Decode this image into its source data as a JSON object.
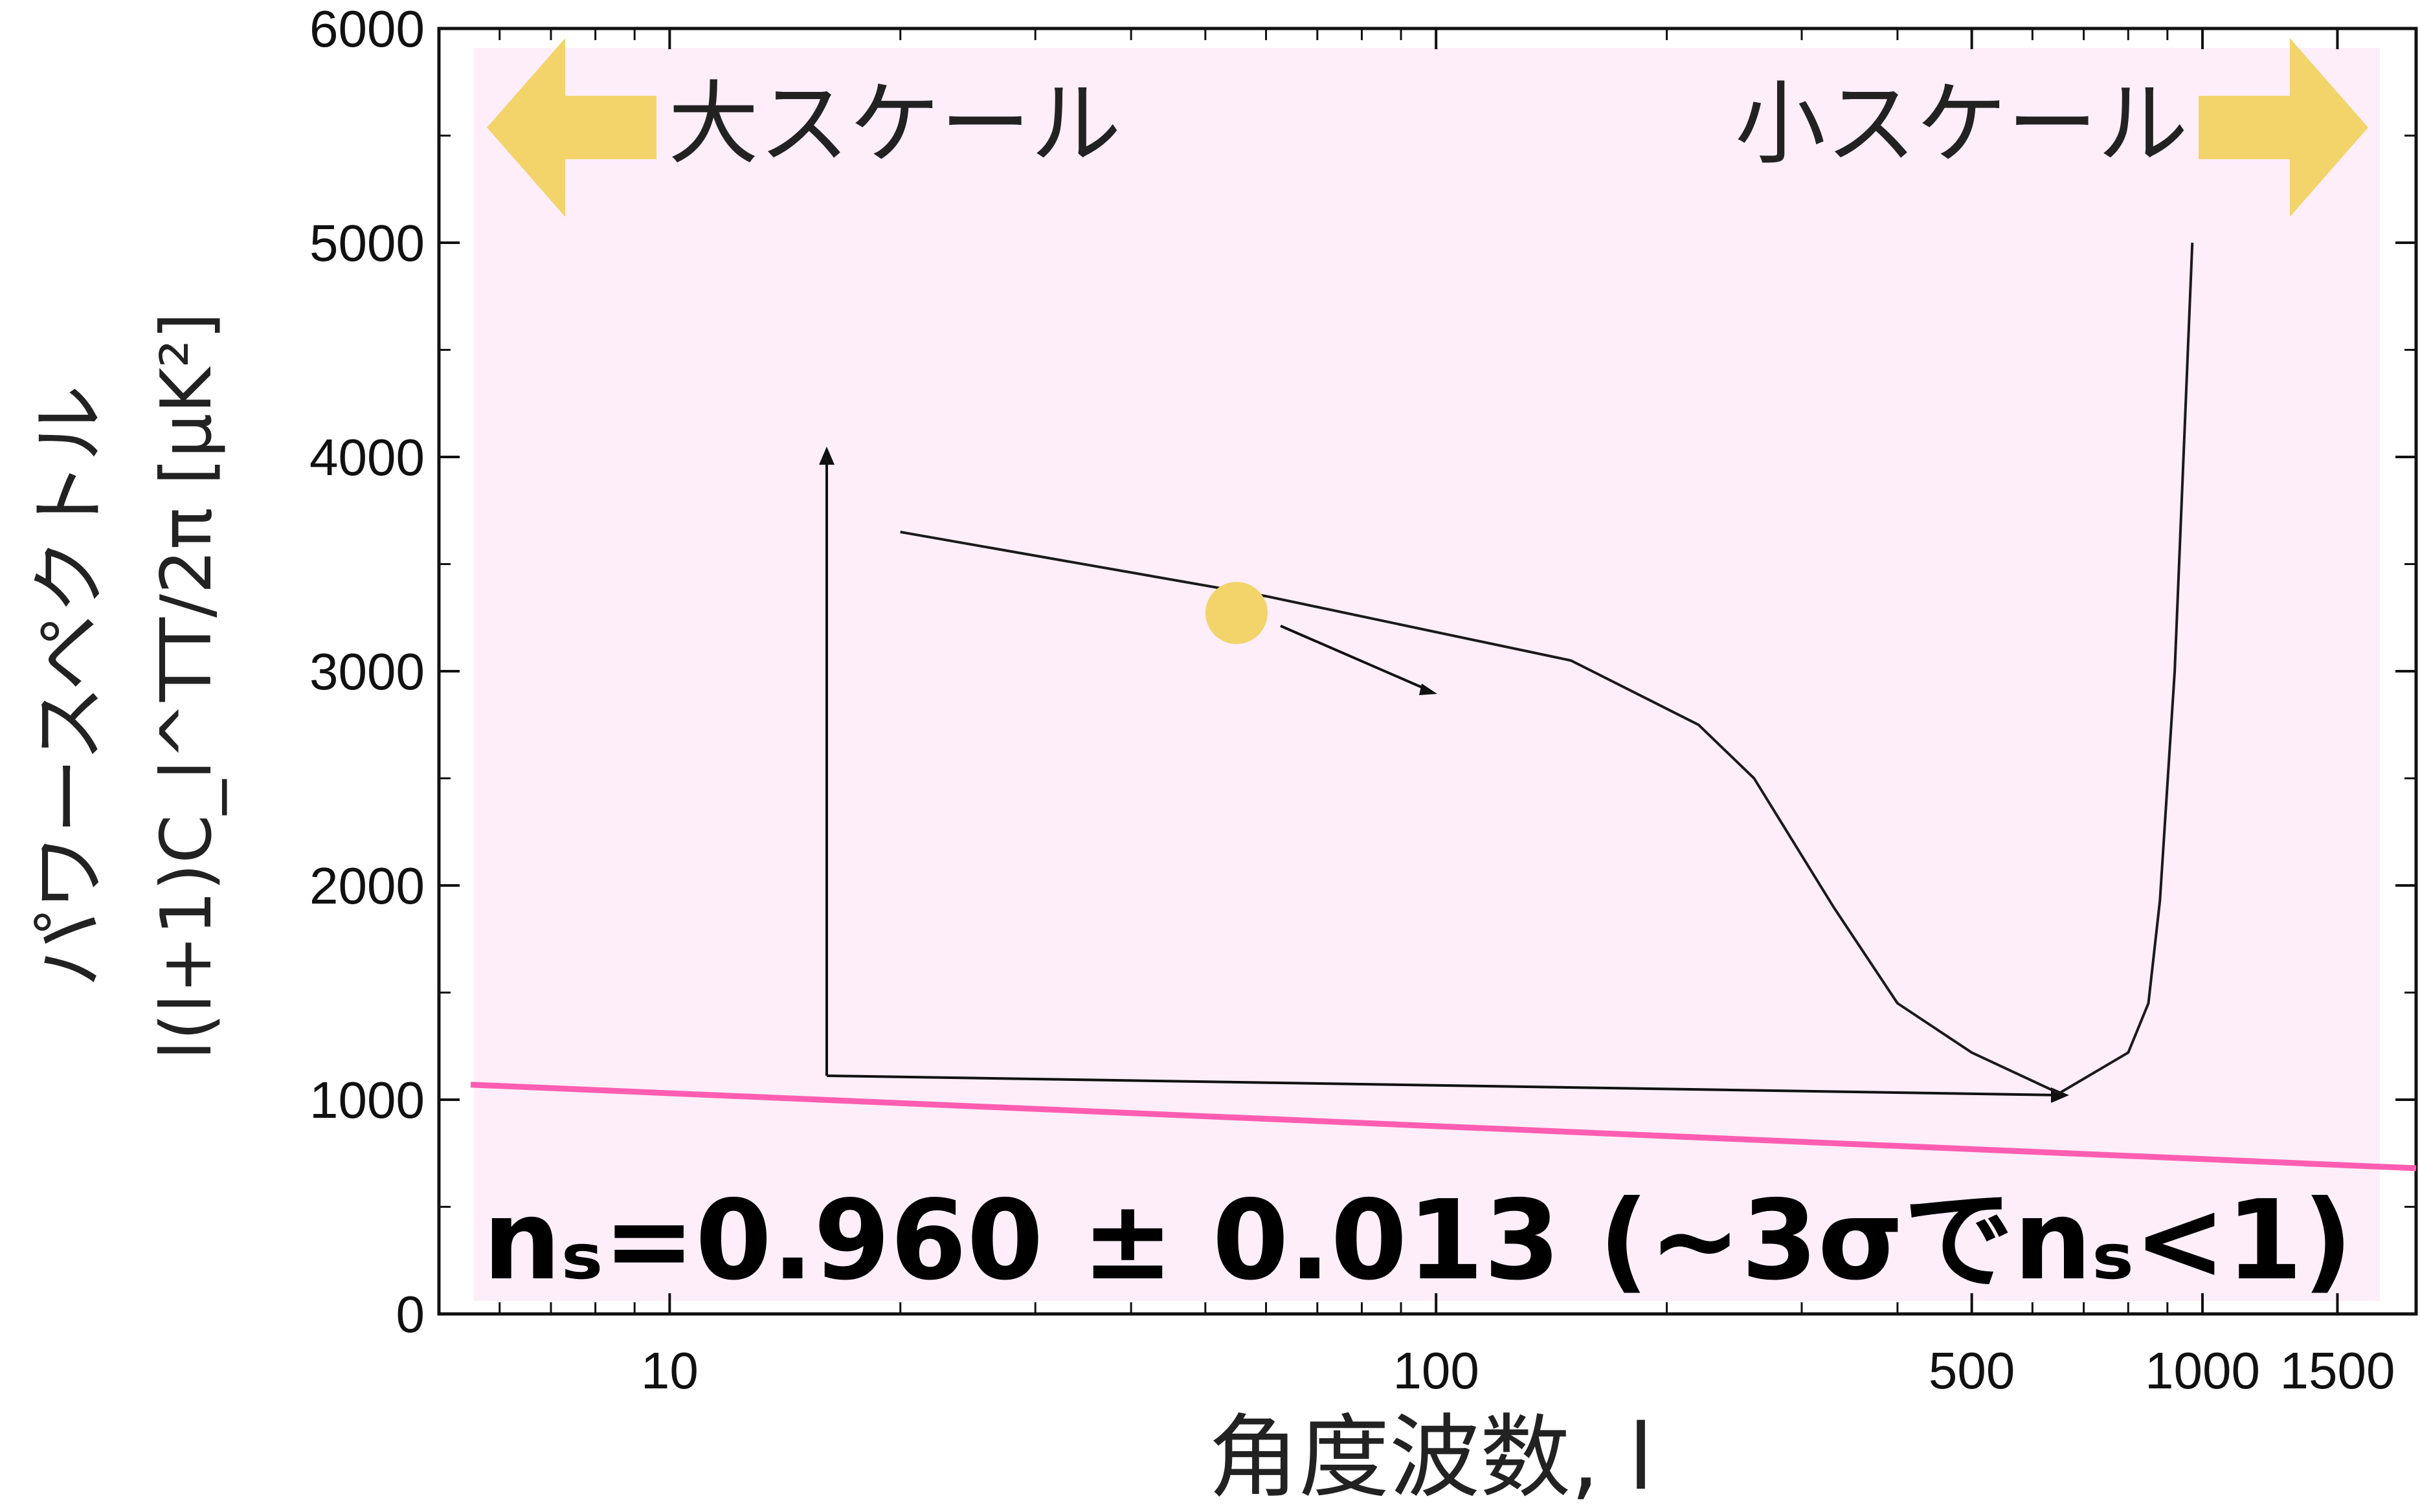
{
  "chart_data": {
    "type": "line",
    "xscale": "log",
    "xlim": [
      5,
      1900
    ],
    "ylim": [
      0,
      6000
    ],
    "x_ticks": [
      10,
      100,
      500,
      1000,
      1500
    ],
    "x_tick_labels": [
      "10",
      "100",
      "500",
      "1000",
      "1500"
    ],
    "y_ticks": [
      0,
      1000,
      2000,
      3000,
      4000,
      5000,
      6000
    ],
    "y_tick_labels": [
      "0",
      "1000",
      "2000",
      "3000",
      "4000",
      "5000",
      "6000"
    ],
    "ylabel_line1": "パワースペクトル",
    "ylabel_line2": "l(l+1)C_l^TT/2π [μK²]",
    "xlabel": "角度波数, l",
    "grid": false,
    "series": [
      {
        "color": "#1a1a1a",
        "x": [
          20,
          60,
          150,
          220,
          260,
          330,
          400,
          500,
          650,
          800,
          850,
          880,
          920,
          970
        ],
        "y": [
          3650,
          3350,
          3050,
          2750,
          2500,
          1900,
          1450,
          1220,
          1030,
          1220,
          1450,
          1930,
          3000,
          5000
        ]
      },
      {
        "color": "#ff5db1",
        "x": [
          5.5,
          1900
        ],
        "y": [
          1070,
          680
        ]
      }
    ],
    "annotations": {
      "left_label": "大スケール",
      "right_label": "小スケール",
      "ns_text": "nₛ=0.960 ± 0.013 (~3σでnₛ<1)"
    },
    "colors": {
      "plot_background": "#fdeefa",
      "arrow_gold": "#f3d46b",
      "marker_gold": "#f3d46b",
      "pink_line": "#ff5db1"
    }
  }
}
